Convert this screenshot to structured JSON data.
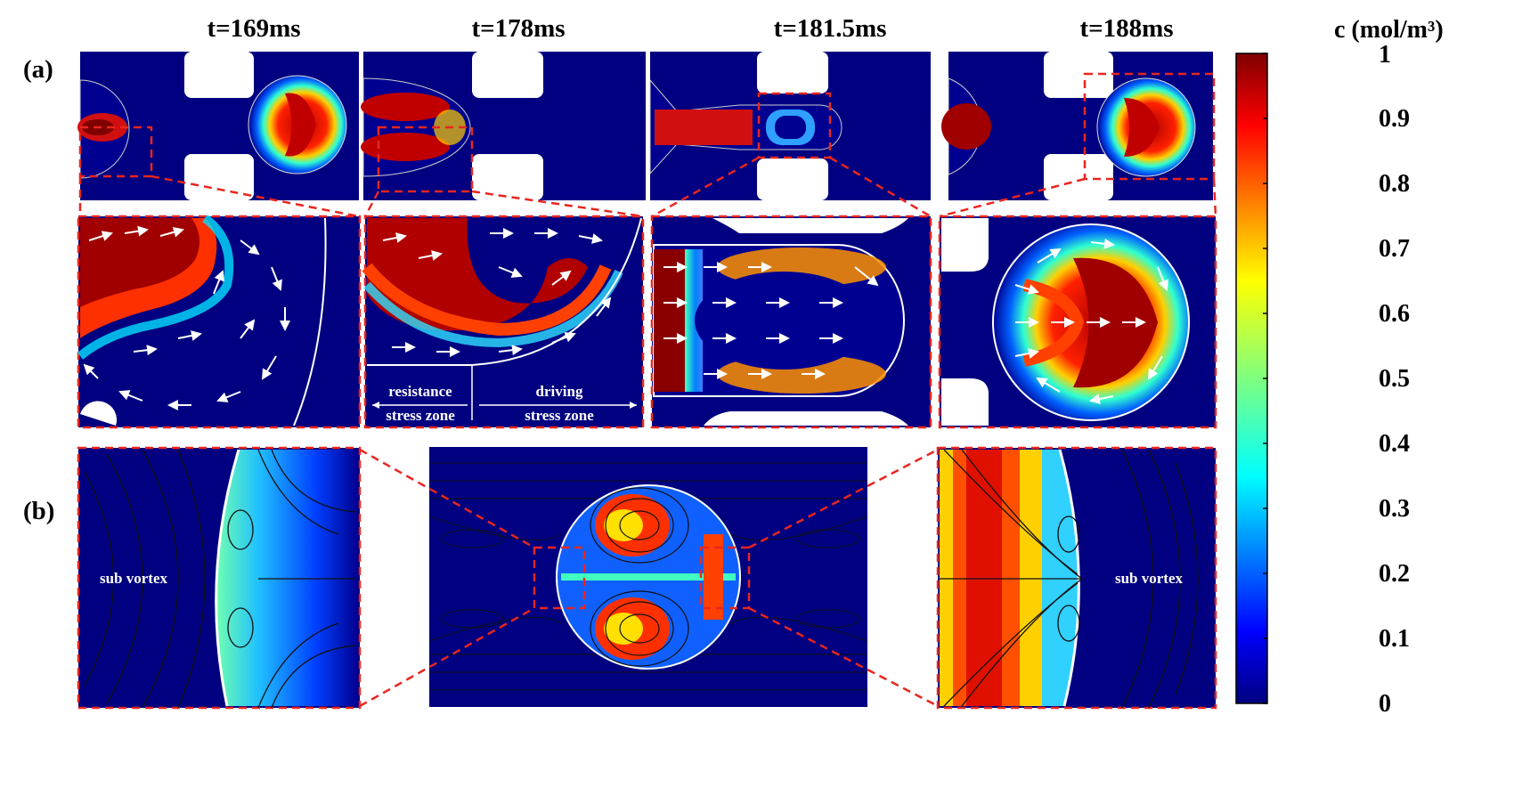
{
  "figure": {
    "panel_a": "(a)",
    "panel_b": "(b)",
    "times": [
      "t=169ms",
      "t=178ms",
      "t=181.5ms",
      "t=188ms"
    ],
    "annotations": {
      "resistance": [
        "resistance",
        "stress zone"
      ],
      "driving": [
        "driving",
        "stress zone"
      ],
      "sub_vortex_left": "sub vortex",
      "sub_vortex_right": "sub vortex"
    }
  },
  "colorbar": {
    "title": "c (mol/m³)",
    "ticks": [
      "1",
      "0.9",
      "0.8",
      "0.7",
      "0.6",
      "0.5",
      "0.4",
      "0.3",
      "0.2",
      "0.1",
      "0"
    ],
    "range": [
      0,
      1
    ],
    "colormap": "jet"
  },
  "colors": {
    "background": "#000080",
    "highlight_box": "#e8261f",
    "vector": "#ffffff",
    "streamline": "#111111"
  }
}
